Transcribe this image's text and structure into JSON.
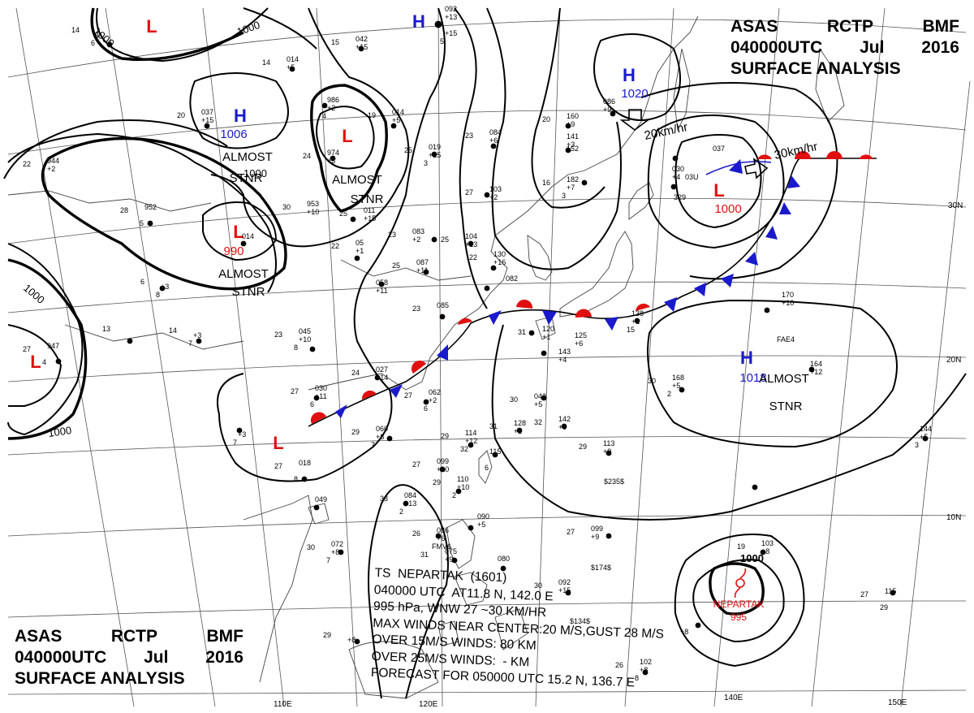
{
  "header": {
    "line1": [
      "ASAS",
      "RCTP",
      "BMF"
    ],
    "line2": [
      "040000UTC",
      "Jul",
      "2016"
    ],
    "line3": "SURFACE ANALYSIS"
  },
  "pressure_centers": [
    {
      "type": "H",
      "label": "1006",
      "note": "ALMOST STNR"
    },
    {
      "type": "H",
      "label": "1020"
    },
    {
      "type": "H",
      "label": "1018",
      "note": "ALMOST STNR"
    },
    {
      "type": "H",
      "label": ""
    },
    {
      "type": "L",
      "label": "990",
      "note": "ALMOST STNR"
    },
    {
      "type": "L",
      "label": "1000",
      "motion": "30km/hr"
    },
    {
      "type": "L",
      "label": "",
      "note": "ALMOST STNR"
    },
    {
      "type": "L",
      "label": ""
    },
    {
      "type": "L",
      "label": ""
    },
    {
      "type": "L",
      "label": ""
    }
  ],
  "motions": [
    "20km/hr",
    "30km/hr"
  ],
  "almost_stnr": [
    "ALMOST",
    "STNR"
  ],
  "isobar_labels": [
    "1000",
    "1000",
    "1000",
    "1000",
    "1000",
    "1000"
  ],
  "lat_labels": [
    "30N",
    "20N",
    "10N"
  ],
  "lon_labels": [
    "110E",
    "120E",
    "140E",
    "150E"
  ],
  "storm": {
    "name": "NEPARTAK",
    "pressure": "995",
    "isobar": "1000",
    "info_lines": [
      "TS  NEPARTAK  (1601)",
      "040000 UTC  AT11.8 N, 142.0 E",
      "995 hPa, WNW 27 ~30 KM/HR",
      "MAX WINDS NEAR CENTER:20 M/S,GUST 28 M/S",
      "OVER 15M/S WINDS: 80 KM",
      "OVER 25M/S WINDS:  - KM",
      "FORECAST FOR 050000 UTC 15.2 N, 136.7 E"
    ]
  },
  "stations": [
    {
      "t": "14",
      "p": "",
      "d": "1",
      "w": "6"
    },
    {
      "t": "",
      "p": "092",
      "d": "+13",
      "w": ""
    },
    {
      "t": "",
      "p": "",
      "d": "+15",
      "w": "5"
    },
    {
      "t": "15",
      "p": "042",
      "d": "+15",
      "w": ""
    },
    {
      "t": "14",
      "p": "014",
      "d": "+5",
      "w": ""
    },
    {
      "t": "20",
      "p": "037",
      "d": "+15",
      "w": ""
    },
    {
      "t": "",
      "p": "986",
      "d": "+2",
      "w": "4"
    },
    {
      "t": "19",
      "p": "014",
      "d": "+5",
      "w": ""
    },
    {
      "t": "23",
      "p": "084",
      "d": "+6",
      "w": ""
    },
    {
      "t": "20",
      "p": "160",
      "d": "+9",
      "w": ""
    },
    {
      "t": "",
      "p": "086",
      "d": "+9",
      "w": ""
    },
    {
      "t": "",
      "p": "141",
      "d": "+3",
      "w": ""
    },
    {
      "t": "",
      "p": "152",
      "d": "",
      "w": ""
    },
    {
      "t": "22",
      "p": "944",
      "d": "+2",
      "w": ""
    },
    {
      "t": "24",
      "p": "974",
      "d": "+3",
      "w": ""
    },
    {
      "t": "25",
      "p": "019",
      "d": "+15",
      "w": "3"
    },
    {
      "t": "",
      "p": "037",
      "d": "",
      "w": ""
    },
    {
      "t": "",
      "p": "030",
      "d": "+4",
      "w": ""
    },
    {
      "t": "",
      "p": "03U",
      "d": "",
      "w": ""
    },
    {
      "t": "",
      "p": "329",
      "d": "",
      "w": ""
    },
    {
      "t": "30",
      "p": "953",
      "d": "+10",
      "w": ""
    },
    {
      "t": "27",
      "p": "103",
      "d": "+2",
      "w": ""
    },
    {
      "t": "16",
      "p": "182",
      "d": "+7",
      "w": "3"
    },
    {
      "t": "28",
      "p": "952",
      "d": "",
      "w": "5"
    },
    {
      "t": "",
      "p": "014",
      "d": "",
      "w": ""
    },
    {
      "t": "25",
      "p": "011",
      "d": "+15",
      "w": ""
    },
    {
      "t": "23",
      "p": "083",
      "d": "+2",
      "w": ""
    },
    {
      "t": "25",
      "p": "104",
      "d": "+13",
      "w": ""
    },
    {
      "t": "22",
      "p": "05",
      "d": "+1",
      "w": ""
    },
    {
      "t": "22",
      "p": "130",
      "d": "+16",
      "w": ""
    },
    {
      "t": "6",
      "p": "",
      "d": "+3",
      "w": "8"
    },
    {
      "t": "",
      "p": "058",
      "d": "+11",
      "w": ""
    },
    {
      "t": "25",
      "p": "087",
      "d": "+11",
      "w": ""
    },
    {
      "t": "",
      "p": "082",
      "d": "",
      "w": ""
    },
    {
      "t": "23",
      "p": "085",
      "d": "",
      "w": ""
    },
    {
      "t": "",
      "p": "138",
      "d": "+1",
      "w": "15"
    },
    {
      "t": "",
      "p": "170",
      "d": "+10",
      "w": ""
    },
    {
      "t": "",
      "p": "",
      "d": "",
      "w": "FAE4"
    },
    {
      "t": "13",
      "p": "",
      "d": "",
      "w": ""
    },
    {
      "t": "14",
      "p": "",
      "d": "+3",
      "w": "7"
    },
    {
      "t": "23",
      "p": "045",
      "d": "+10",
      "w": "8"
    },
    {
      "t": "31",
      "p": "120",
      "d": "+1",
      "w": ""
    },
    {
      "t": "",
      "p": "143",
      "d": "+4",
      "w": ""
    },
    {
      "t": "",
      "p": "125",
      "d": "+6",
      "w": ""
    },
    {
      "t": "27",
      "p": "947",
      "d": "",
      "w": "4"
    },
    {
      "t": "24",
      "p": "027",
      "d": "+14",
      "w": ""
    },
    {
      "t": "27",
      "p": "062",
      "d": "+2",
      "w": "6"
    },
    {
      "t": "27",
      "p": "030",
      "d": "+11",
      "w": "6"
    },
    {
      "t": "30",
      "p": "042",
      "d": "+5",
      "w": ""
    },
    {
      "t": "30",
      "p": "168",
      "d": "+5",
      "w": "2"
    },
    {
      "t": "",
      "p": "164",
      "d": "+12",
      "w": ""
    },
    {
      "t": "",
      "p": "",
      "d": "+3",
      "w": "7"
    },
    {
      "t": "29",
      "p": "060",
      "d": "+8",
      "w": "7"
    },
    {
      "t": "31",
      "p": "128",
      "d": "+2",
      "w": ""
    },
    {
      "t": "32",
      "p": "142",
      "d": "+9",
      "w": ""
    },
    {
      "t": "29",
      "p": "114",
      "d": "+12",
      "w": "32"
    },
    {
      "t": "",
      "p": "115",
      "d": "",
      "w": "6"
    },
    {
      "t": "29",
      "p": "113",
      "d": "+9",
      "w": ""
    },
    {
      "t": "",
      "p": "",
      "d": "",
      "w": "$235$"
    },
    {
      "t": "",
      "p": "144",
      "d": "+5",
      "w": "3"
    },
    {
      "t": "27",
      "p": "018",
      "d": "",
      "w": "8"
    },
    {
      "t": "27",
      "p": "099",
      "d": "+10",
      "w": ""
    },
    {
      "t": "29",
      "p": "110",
      "d": "+10",
      "w": "2"
    },
    {
      "t": "33",
      "p": "084",
      "d": "+13",
      "w": "2"
    },
    {
      "t": "",
      "p": "049",
      "d": "",
      "w": ""
    },
    {
      "t": "",
      "p": "090",
      "d": "+5",
      "w": ""
    },
    {
      "t": "26",
      "p": "086",
      "d": "+6",
      "w": "FMV6"
    },
    {
      "t": "27",
      "p": "099",
      "d": "+9",
      "w": ""
    },
    {
      "t": "",
      "p": "",
      "d": "",
      "w": "$174$"
    },
    {
      "t": "30",
      "p": "072",
      "d": "+8",
      "w": "7"
    },
    {
      "t": "31",
      "p": "075",
      "d": "+9",
      "w": ""
    },
    {
      "t": "",
      "p": "080",
      "d": "",
      "w": ""
    },
    {
      "t": "19",
      "p": "103",
      "d": "+8",
      "w": ""
    },
    {
      "t": "30",
      "p": "092",
      "d": "+15",
      "w": ""
    },
    {
      "t": "",
      "p": "",
      "d": "",
      "w": "$134$"
    },
    {
      "t": "27",
      "p": "115",
      "d": "",
      "w": "29"
    },
    {
      "t": "",
      "p": "",
      "d": "+8",
      "w": ""
    },
    {
      "t": "29",
      "p": "",
      "d": "+8",
      "w": ""
    },
    {
      "t": "26",
      "p": "102",
      "d": "+8",
      "w": "8"
    }
  ],
  "colors": {
    "high": "#1a1acc",
    "low": "#e01010",
    "cold_front": "#1a1acc",
    "warm_front": "#e01010",
    "isobar": "#000000",
    "grid": "#555555",
    "coast": "#444444"
  }
}
